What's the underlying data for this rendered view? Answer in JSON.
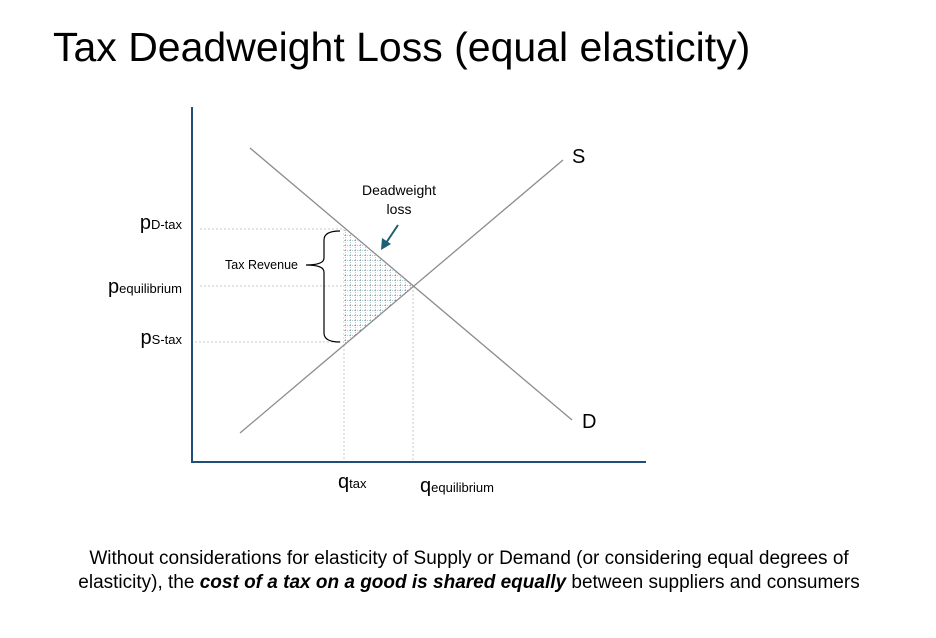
{
  "title": "Tax Deadweight Loss (equal elasticity)",
  "curves": {
    "supply": "S",
    "demand": "D"
  },
  "price_labels": [
    {
      "base": "p",
      "sub": "D-tax"
    },
    {
      "base": "p",
      "sub": "equilibrium"
    },
    {
      "base": "p",
      "sub": "S-tax"
    }
  ],
  "quantity_labels": [
    {
      "base": "q",
      "sub": "tax"
    },
    {
      "base": "q",
      "sub": "equilibrium"
    }
  ],
  "annotations": {
    "deadweight_loss": [
      "Deadweight",
      "loss"
    ],
    "tax_revenue": "Tax Revenue"
  },
  "caption": {
    "line1": "Without considerations for elasticity of Supply or Demand (or considering equal degrees of",
    "line2": [
      "elasticity), the ",
      "cost of a tax on a good is shared equally",
      " between suppliers and consumers"
    ]
  }
}
